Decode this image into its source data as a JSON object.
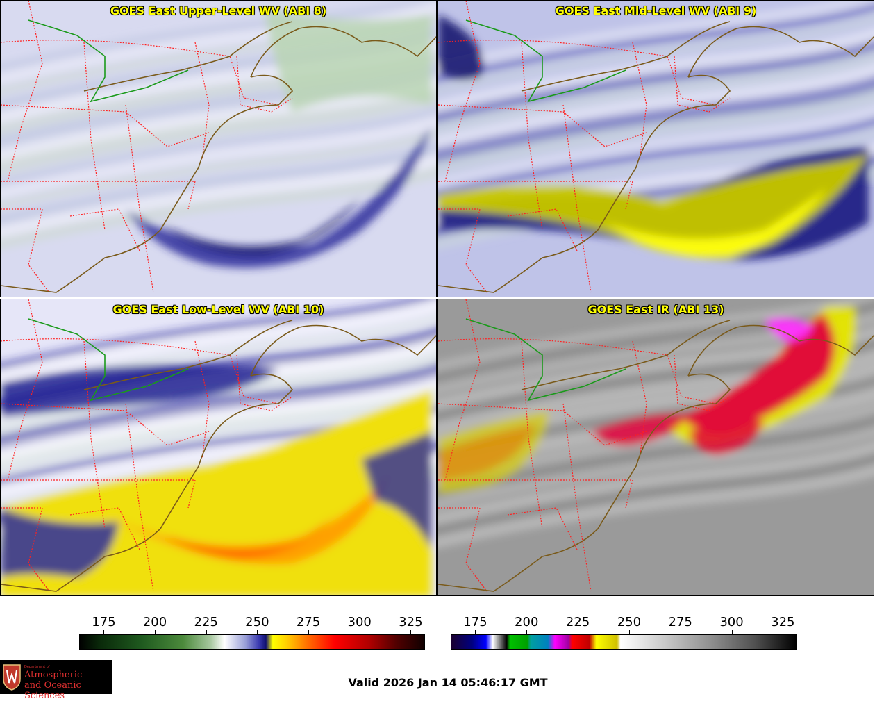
{
  "panels": [
    {
      "title": "GOES East Upper-Level WV (ABI 8)",
      "style": "wv-upper"
    },
    {
      "title": "GOES East Mid-Level WV (ABI 9)",
      "style": "wv-mid"
    },
    {
      "title": "GOES East Low-Level WV (ABI 10)",
      "style": "wv-low"
    },
    {
      "title": "GOES East IR (ABI 13)",
      "style": "ir"
    }
  ],
  "colorbars": [
    {
      "ticks": [
        "175",
        "200",
        "225",
        "250",
        "275",
        "300",
        "325"
      ],
      "range": [
        163,
        332
      ]
    },
    {
      "ticks": [
        "175",
        "200",
        "225",
        "250",
        "275",
        "300",
        "325"
      ],
      "range": [
        163,
        332
      ]
    }
  ],
  "logo": {
    "dept": "Department of",
    "line1": "Atmospheric",
    "line2": "and Oceanic Sciences",
    "colors": {
      "background": "#000000",
      "text": "#e03030"
    }
  },
  "valid_time": "Valid 2026 Jan 14 05:46:17 GMT",
  "colors": {
    "title_text": "#ffff00",
    "state_borders": "#ff2020",
    "coastline": "#7a5a1a",
    "canada_border": "#1a9a1a"
  }
}
